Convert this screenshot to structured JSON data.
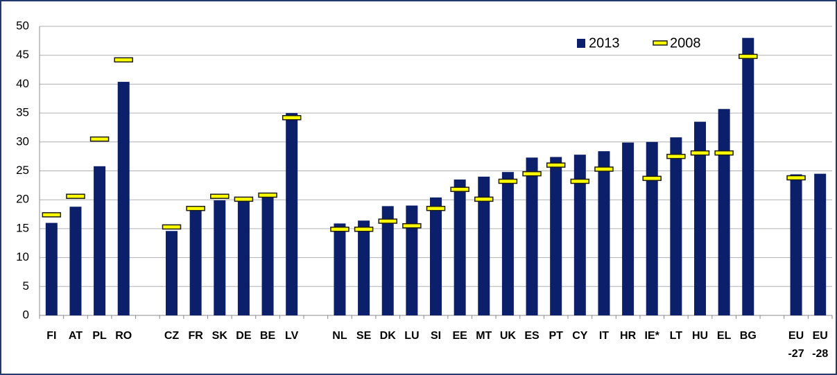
{
  "chart_data": {
    "type": "bar",
    "categories": [
      "FI",
      "AT",
      "PL",
      "RO",
      null,
      "CZ",
      "FR",
      "SK",
      "DE",
      "BE",
      "LV",
      null,
      "NL",
      "SE",
      "DK",
      "LU",
      "SI",
      "EE",
      "MT",
      "UK",
      "ES",
      "PT",
      "CY",
      "IT",
      "HR",
      "IE*",
      "LT",
      "HU",
      "EL",
      "BG",
      null,
      "EU -27",
      "EU -28"
    ],
    "series": [
      {
        "name": "2013",
        "color": "#0c1f6b",
        "style": "bar",
        "values": [
          16,
          18.8,
          25.8,
          40.4,
          null,
          14.6,
          18.1,
          19.9,
          20.3,
          20.8,
          35,
          null,
          15.9,
          16.4,
          18.9,
          19,
          20.4,
          23.5,
          24,
          24.8,
          27.3,
          27.4,
          27.8,
          28.4,
          29.9,
          30,
          30.8,
          33.5,
          35.7,
          48,
          null,
          24.4,
          24.5
        ]
      },
      {
        "name": "2008",
        "color": "#ffff00",
        "style": "dash",
        "values": [
          17.4,
          20.6,
          30.5,
          44.2,
          null,
          15.3,
          18.5,
          20.6,
          20.1,
          20.8,
          34.2,
          null,
          14.9,
          14.9,
          16.3,
          15.5,
          18.5,
          21.8,
          20.1,
          23.2,
          24.5,
          26,
          23.2,
          25.3,
          null,
          23.7,
          27.5,
          28.1,
          28.1,
          44.8,
          null,
          23.8,
          null
        ]
      }
    ],
    "ylim": [
      0,
      50
    ],
    "yticks": [
      0,
      5,
      10,
      15,
      20,
      25,
      30,
      35,
      40,
      45,
      50
    ],
    "grid": true,
    "legend": "upper right"
  }
}
